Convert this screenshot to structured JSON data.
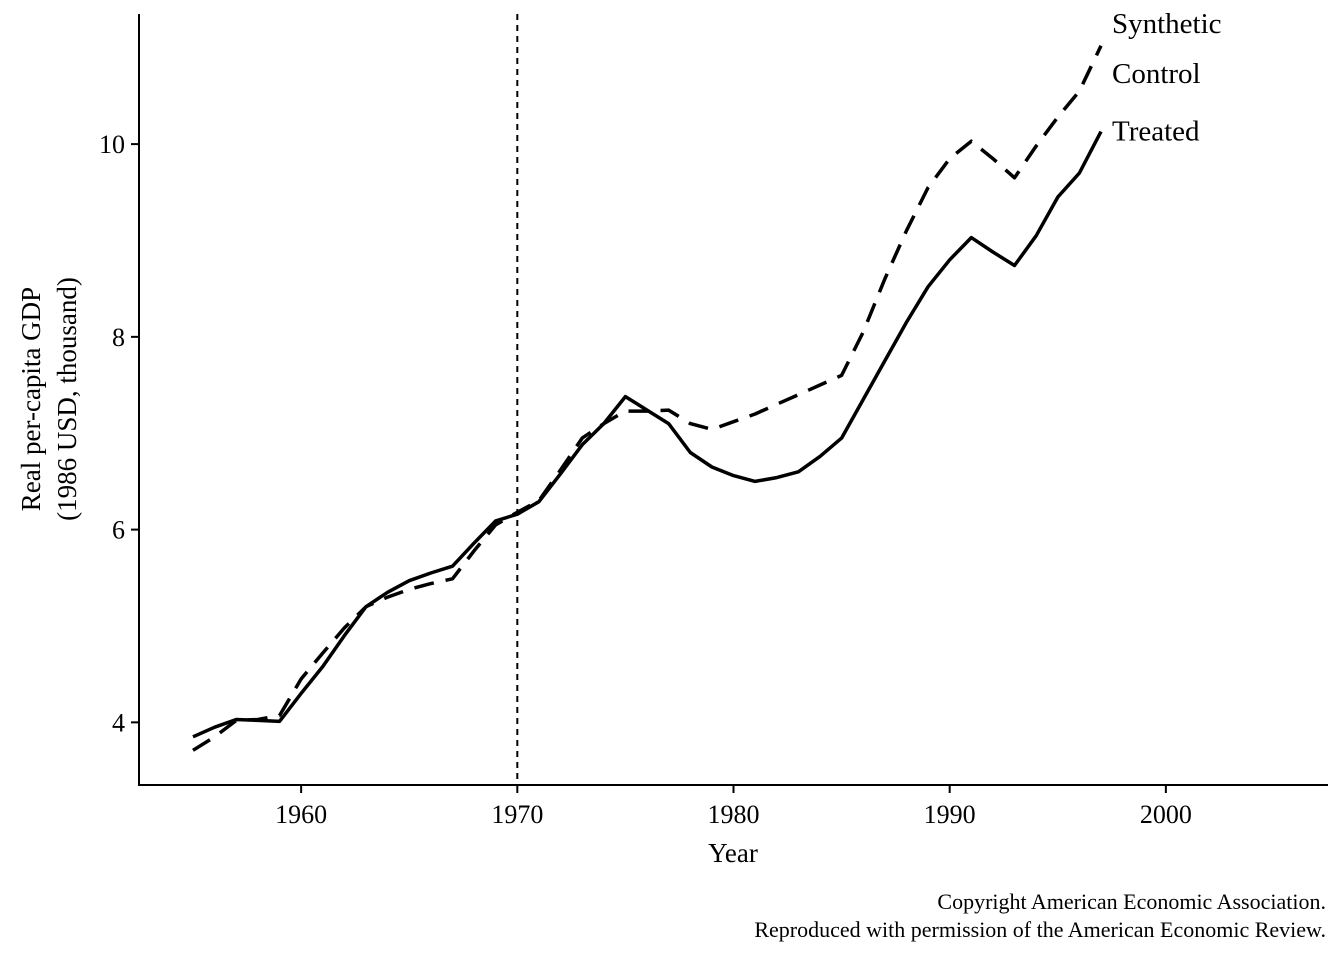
{
  "chart_data": {
    "type": "line",
    "title": "",
    "xlabel": "Year",
    "ylabel_lines": [
      "Real per-capita GDP",
      "(1986 USD, thousand)"
    ],
    "xlim": [
      1952.5,
      2007.5
    ],
    "ylim": [
      3.35,
      11.35
    ],
    "xticks": [
      1960,
      1970,
      1980,
      1990,
      2000
    ],
    "yticks": [
      4,
      6,
      8,
      10
    ],
    "grid": false,
    "treatment_year": 1970,
    "series": [
      {
        "name": "Treated",
        "style": "solid",
        "label_lines": [
          "Treated"
        ],
        "x": [
          1955,
          1956,
          1957,
          1958,
          1959,
          1960,
          1961,
          1962,
          1963,
          1964,
          1965,
          1966,
          1967,
          1968,
          1969,
          1970,
          1971,
          1972,
          1973,
          1974,
          1975,
          1976,
          1977,
          1978,
          1979,
          1980,
          1981,
          1982,
          1983,
          1984,
          1985,
          1986,
          1987,
          1988,
          1989,
          1990,
          1991,
          1992,
          1993,
          1994,
          1995,
          1996,
          1997
        ],
        "y": [
          3.85,
          3.95,
          4.03,
          4.02,
          4.01,
          4.3,
          4.58,
          4.9,
          5.2,
          5.35,
          5.47,
          5.55,
          5.62,
          5.86,
          6.09,
          6.16,
          6.29,
          6.58,
          6.88,
          7.1,
          7.38,
          7.24,
          7.1,
          6.8,
          6.65,
          6.56,
          6.5,
          6.54,
          6.6,
          6.76,
          6.95,
          7.35,
          7.75,
          8.15,
          8.52,
          8.8,
          9.03,
          8.88,
          8.74,
          9.05,
          9.45,
          9.7,
          10.13
        ]
      },
      {
        "name": "Synthetic Control",
        "style": "dashed",
        "label_lines": [
          "Synthetic",
          "Control"
        ],
        "x": [
          1955,
          1956,
          1957,
          1958,
          1959,
          1960,
          1961,
          1962,
          1963,
          1964,
          1965,
          1966,
          1967,
          1968,
          1969,
          1970,
          1971,
          1972,
          1973,
          1974,
          1975,
          1976,
          1977,
          1978,
          1979,
          1980,
          1981,
          1982,
          1983,
          1984,
          1985,
          1986,
          1987,
          1988,
          1989,
          1990,
          1991,
          1992,
          1993,
          1994,
          1995,
          1996,
          1997
        ],
        "y": [
          3.71,
          3.85,
          4.02,
          4.03,
          4.07,
          4.45,
          4.72,
          4.98,
          5.2,
          5.3,
          5.38,
          5.44,
          5.49,
          5.78,
          6.05,
          6.18,
          6.3,
          6.62,
          6.95,
          7.1,
          7.23,
          7.23,
          7.24,
          7.1,
          7.04,
          7.12,
          7.2,
          7.3,
          7.4,
          7.5,
          7.6,
          8.05,
          8.6,
          9.1,
          9.55,
          9.85,
          10.03,
          9.85,
          9.65,
          9.98,
          10.28,
          10.55,
          11.02
        ]
      }
    ]
  },
  "caption": {
    "line1": "Copyright American Economic Association.",
    "line2": "Reproduced with permission of the American Economic Review."
  }
}
